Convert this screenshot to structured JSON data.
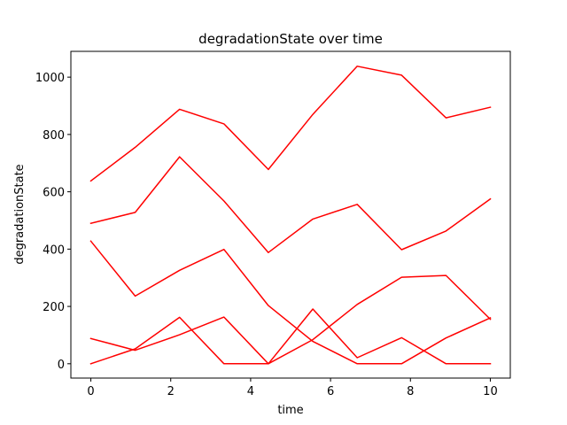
{
  "chart_data": {
    "type": "line",
    "title": "degradationState over time",
    "xlabel": "time",
    "ylabel": "degradationState",
    "xlim": [
      -0.5,
      10.5
    ],
    "ylim": [
      -50,
      1090
    ],
    "x_ticks": [
      0,
      2,
      4,
      6,
      8,
      10
    ],
    "y_ticks": [
      0,
      200,
      400,
      600,
      800,
      1000
    ],
    "grid": false,
    "legend": "none",
    "line_color": "#ff0000",
    "x": [
      0,
      1.111,
      2.222,
      3.333,
      4.444,
      5.556,
      6.667,
      7.778,
      8.889,
      10
    ],
    "series": [
      {
        "values": [
          638,
          755,
          888,
          837,
          678,
          870,
          1038,
          1007,
          858,
          895
        ]
      },
      {
        "values": [
          490,
          528,
          722,
          568,
          388,
          505,
          556,
          398,
          463,
          575
        ]
      },
      {
        "values": [
          428,
          236,
          326,
          399,
          203,
          78,
          0,
          0,
          90,
          160
        ]
      },
      {
        "values": [
          88,
          47,
          101,
          163,
          0,
          84,
          207,
          302,
          308,
          155
        ]
      },
      {
        "values": [
          0,
          52,
          162,
          0,
          0,
          191,
          21,
          91,
          0,
          0
        ]
      }
    ]
  }
}
